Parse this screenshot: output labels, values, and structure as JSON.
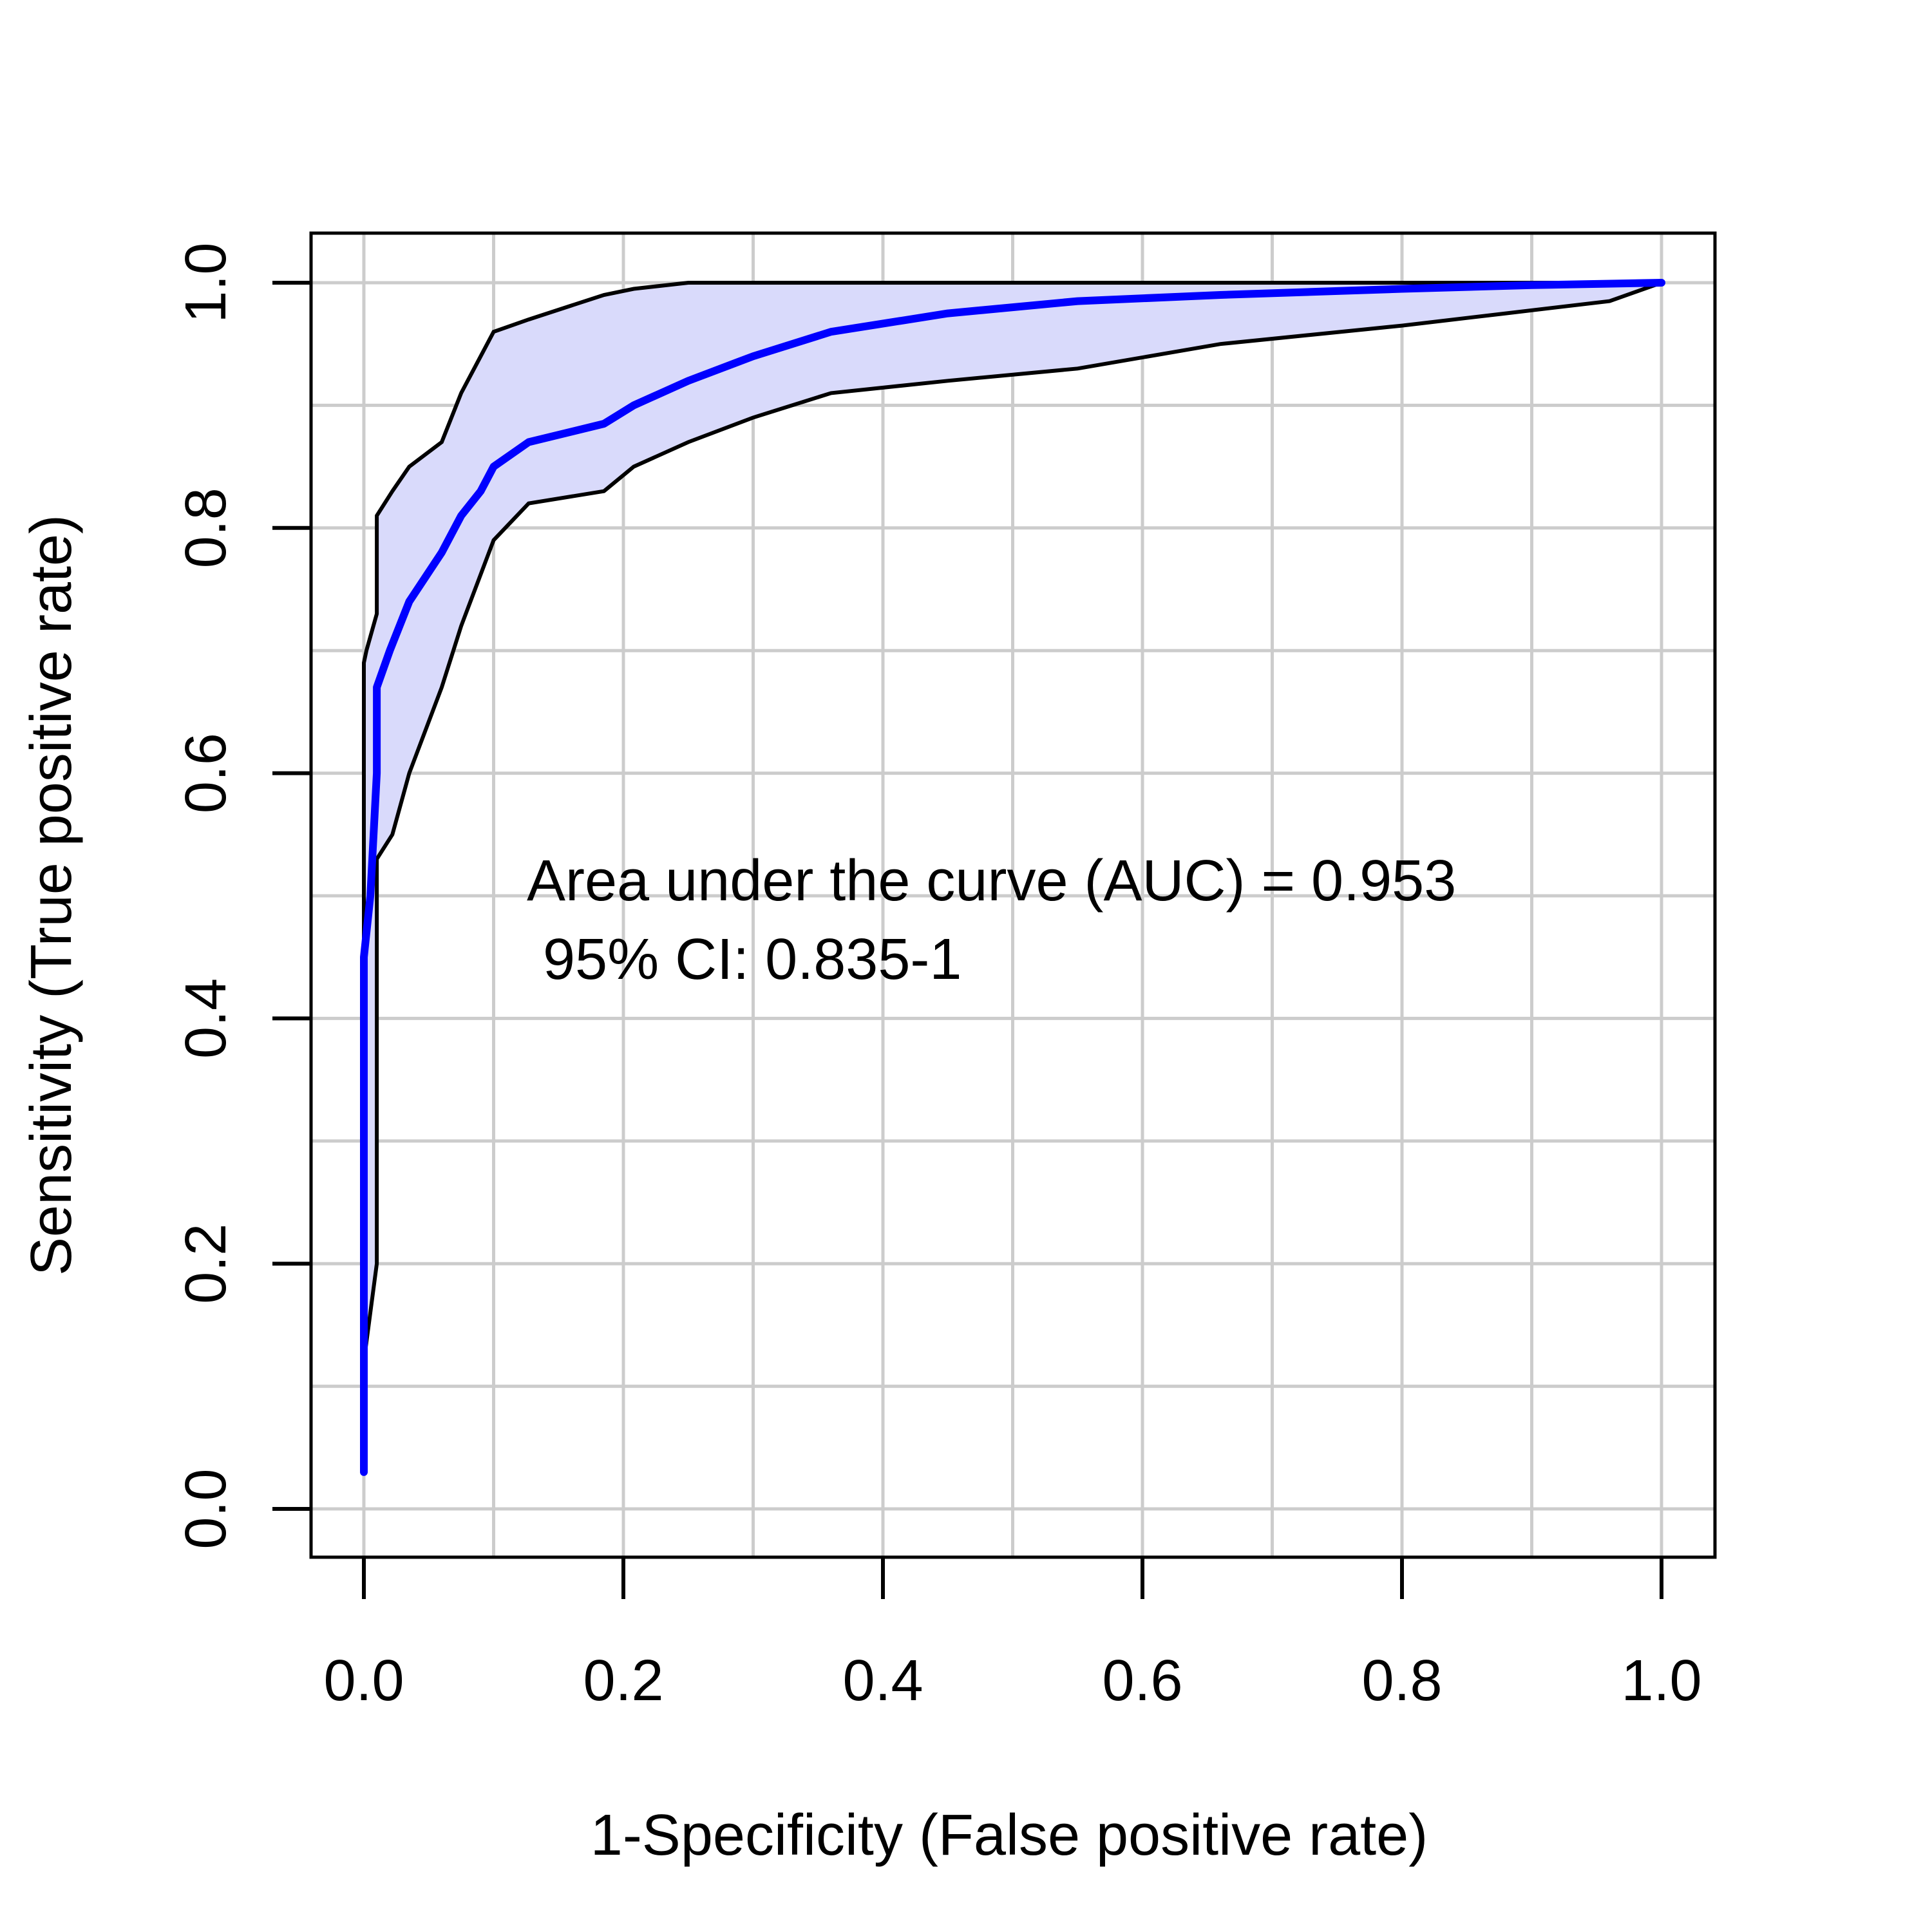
{
  "chart_data": {
    "type": "line",
    "title": "",
    "xlabel": "1-Specificity (False positive rate)",
    "ylabel": "Sensitivity (True positive rate)",
    "xlim": [
      0,
      1
    ],
    "ylim": [
      0,
      1
    ],
    "xticks": [
      "0.0",
      "0.2",
      "0.4",
      "0.6",
      "0.8",
      "1.0"
    ],
    "yticks": [
      "0.0",
      "0.2",
      "0.4",
      "0.6",
      "0.8",
      "1.0"
    ],
    "grid": true,
    "annotation": [
      "Area under the curve (AUC) = 0.953",
      " 95% CI: 0.835-1"
    ],
    "colors": {
      "roc": "#0000ff",
      "band_fill": "#d9dafb",
      "band_line": "#000000",
      "grid": "#cccccc"
    },
    "roc": {
      "x": [
        0,
        0,
        0,
        0.005,
        0.01,
        0.01,
        0.02,
        0.035,
        0.06,
        0.075,
        0.09,
        0.1,
        0.127,
        0.185,
        0.208,
        0.25,
        0.3,
        0.36,
        0.45,
        0.55,
        0.66,
        0.8,
        0.9,
        1.0
      ],
      "y": [
        0.03,
        0.4,
        0.45,
        0.5,
        0.6,
        0.67,
        0.7,
        0.74,
        0.78,
        0.81,
        0.83,
        0.85,
        0.87,
        0.885,
        0.9,
        0.92,
        0.94,
        0.96,
        0.975,
        0.985,
        0.99,
        0.995,
        0.998,
        1.0
      ]
    },
    "band_upper": {
      "x": [
        0,
        0,
        0,
        0.002,
        0.01,
        0.01,
        0.022,
        0.035,
        0.06,
        0.075,
        0.09,
        0.1,
        0.127,
        0.185,
        0.208,
        0.25,
        0.3,
        0.4,
        0.6,
        0.8,
        0.96,
        1.0
      ],
      "y": [
        0.03,
        0.5,
        0.69,
        0.7,
        0.73,
        0.81,
        0.83,
        0.85,
        0.87,
        0.91,
        0.94,
        0.96,
        0.97,
        0.99,
        0.995,
        1.0,
        1.0,
        1.0,
        1.0,
        1.0,
        1.0,
        1.0
      ]
    },
    "band_lower": {
      "x": [
        0,
        0,
        0.01,
        0.01,
        0.01,
        0.022,
        0.035,
        0.06,
        0.075,
        0.1,
        0.127,
        0.185,
        0.208,
        0.25,
        0.3,
        0.36,
        0.45,
        0.55,
        0.66,
        0.8,
        0.88,
        0.96,
        1.0
      ],
      "y": [
        0.03,
        0.12,
        0.2,
        0.35,
        0.53,
        0.55,
        0.6,
        0.67,
        0.72,
        0.79,
        0.82,
        0.83,
        0.85,
        0.87,
        0.89,
        0.91,
        0.92,
        0.93,
        0.95,
        0.965,
        0.975,
        0.985,
        1.0
      ]
    }
  }
}
